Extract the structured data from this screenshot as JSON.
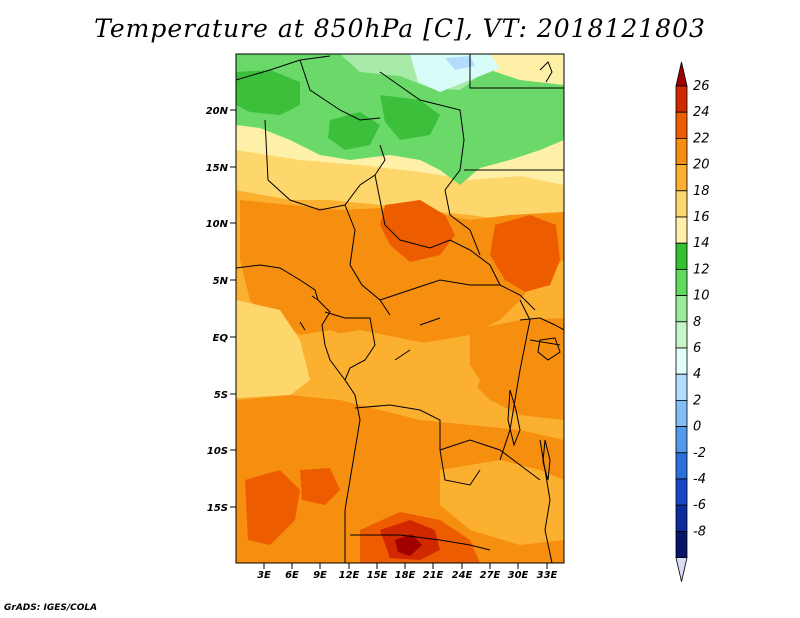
{
  "title": "Temperature at 850hPa [C], VT: 2018121803",
  "credit": "GrADS: IGES/COLA",
  "axes": {
    "lat_labels": [
      "20N",
      "15N",
      "10N",
      "5N",
      "EQ",
      "5S",
      "10S",
      "15S"
    ],
    "lon_labels": [
      "3E",
      "6E",
      "9E",
      "12E",
      "15E",
      "18E",
      "21E",
      "24E",
      "27E",
      "30E",
      "33E"
    ]
  },
  "colorbar": {
    "levels": [
      "26",
      "24",
      "22",
      "20",
      "18",
      "16",
      "14",
      "12",
      "10",
      "8",
      "6",
      "4",
      "2",
      "0",
      "-2",
      "-4",
      "-6",
      "-8"
    ],
    "colors": [
      "#a00000",
      "#d22800",
      "#ee5c00",
      "#f68e10",
      "#fbb030",
      "#fdd66c",
      "#fff0a8",
      "#33c033",
      "#5fdc5f",
      "#98ee98",
      "#c8f6c8",
      "#e0fff8",
      "#b4dcff",
      "#84bcf4",
      "#5498ec",
      "#2c6edc",
      "#1448c8",
      "#0c2c9c",
      "#081468",
      "#d8dcf4"
    ]
  },
  "map": {
    "domain": "Central Africa",
    "field_colors": {
      "green": "#6ad96a",
      "dark_green": "#3cc03c",
      "light_green": "#a8eaa8",
      "pale_cyan": "#d8fcf8",
      "cream": "#fff0a8",
      "yellow": "#fdd66c",
      "light_orange": "#fbb030",
      "orange": "#f68e10",
      "dark_orange": "#ee5c00",
      "red_orange": "#d22800",
      "deep_red": "#a00000"
    }
  }
}
